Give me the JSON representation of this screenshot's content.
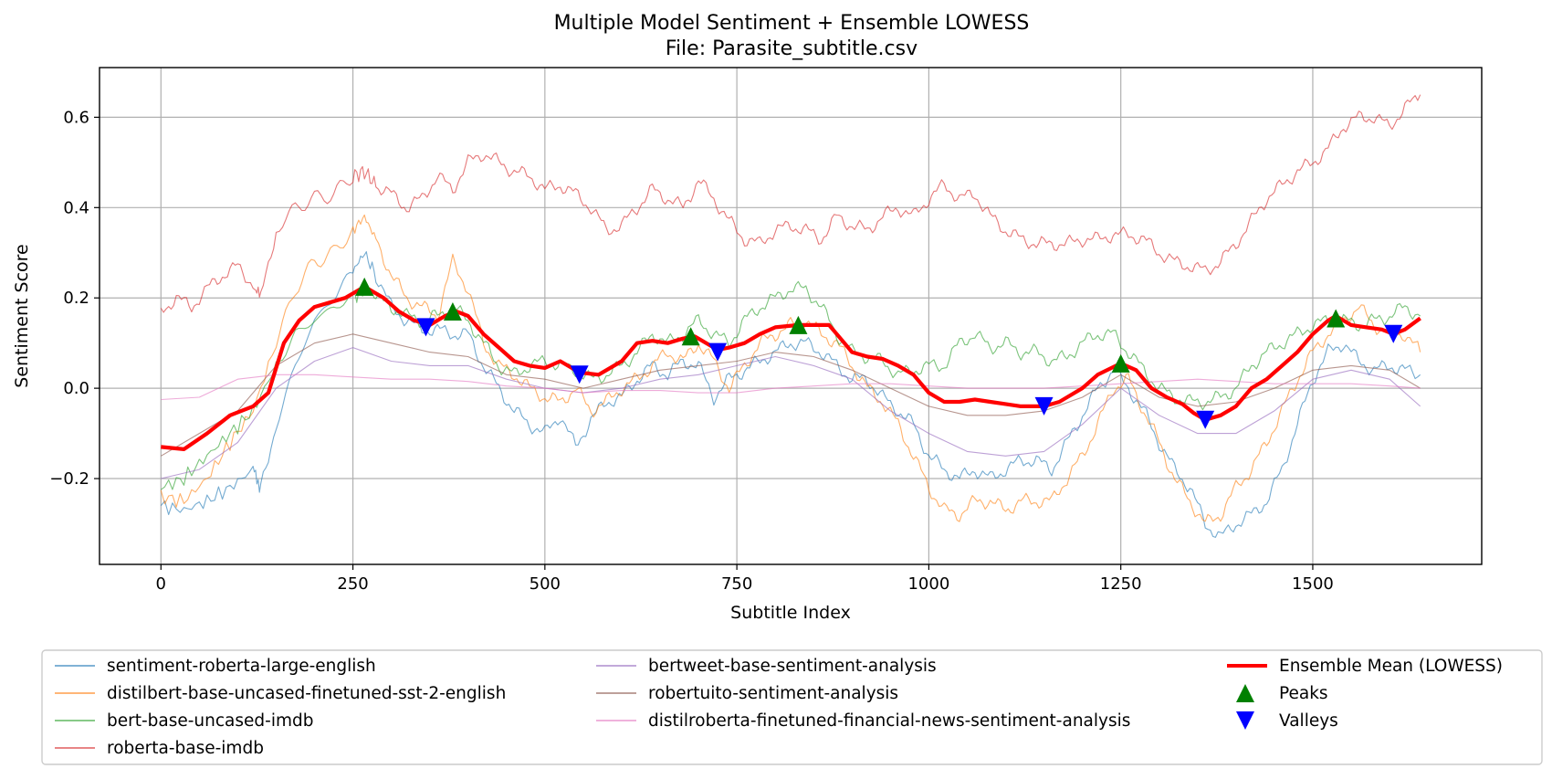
{
  "chart_data": {
    "type": "line",
    "title": "Multiple Model Sentiment + Ensemble LOWESS",
    "subtitle": "File: Parasite_subtitle.csv",
    "xlabel": "Subtitle Index",
    "ylabel": "Sentiment Score",
    "xlim": [
      -80,
      1720
    ],
    "ylim": [
      -0.39,
      0.71
    ],
    "xticks": [
      0,
      250,
      500,
      750,
      1000,
      1250,
      1500
    ],
    "xtick_labels": [
      "0",
      "250",
      "500",
      "750",
      "1000",
      "1250",
      "1500"
    ],
    "yticks": [
      -0.2,
      0.0,
      0.2,
      0.4,
      0.6
    ],
    "ytick_labels": [
      "−0.2",
      "0.0",
      "0.2",
      "0.4",
      "0.6"
    ],
    "grid": true,
    "legend_position": "bottom",
    "series": [
      {
        "name": "sentiment-roberta-large-english",
        "color": "#1f77b4",
        "x": [
          0,
          30,
          60,
          90,
          120,
          130,
          150,
          175,
          200,
          225,
          250,
          265,
          280,
          300,
          320,
          340,
          360,
          380,
          400,
          420,
          440,
          460,
          480,
          500,
          520,
          540,
          560,
          580,
          600,
          620,
          640,
          660,
          680,
          700,
          720,
          740,
          760,
          780,
          800,
          820,
          840,
          860,
          880,
          900,
          920,
          940,
          960,
          980,
          1000,
          1020,
          1040,
          1060,
          1080,
          1100,
          1120,
          1140,
          1160,
          1180,
          1200,
          1220,
          1240,
          1260,
          1280,
          1300,
          1320,
          1340,
          1360,
          1380,
          1400,
          1420,
          1440,
          1460,
          1480,
          1500,
          1520,
          1540,
          1560,
          1580,
          1600,
          1620,
          1640
        ],
        "y": [
          -0.26,
          -0.27,
          -0.25,
          -0.22,
          -0.18,
          -0.22,
          -0.08,
          0.05,
          0.15,
          0.2,
          0.26,
          0.3,
          0.25,
          0.18,
          0.15,
          0.13,
          0.13,
          0.12,
          0.12,
          0.05,
          0.0,
          -0.05,
          -0.08,
          -0.1,
          -0.06,
          -0.13,
          -0.07,
          -0.03,
          -0.02,
          0.02,
          0.05,
          0.03,
          0.06,
          0.05,
          -0.02,
          0.02,
          0.04,
          0.06,
          0.08,
          0.1,
          0.1,
          0.08,
          0.05,
          0.02,
          0.02,
          -0.02,
          -0.05,
          -0.08,
          -0.15,
          -0.18,
          -0.2,
          -0.18,
          -0.2,
          -0.18,
          -0.16,
          -0.16,
          -0.18,
          -0.12,
          -0.06,
          0.0,
          0.04,
          0.0,
          -0.05,
          -0.12,
          -0.18,
          -0.22,
          -0.3,
          -0.33,
          -0.3,
          -0.28,
          -0.25,
          -0.18,
          -0.08,
          0.02,
          0.08,
          0.1,
          0.06,
          0.04,
          0.05,
          0.04,
          0.03
        ]
      },
      {
        "name": "distilbert-base-uncased-finetuned-sst-2-english",
        "color": "#ff7f0e",
        "x": [
          0,
          30,
          60,
          90,
          120,
          150,
          175,
          200,
          225,
          250,
          265,
          280,
          300,
          320,
          340,
          360,
          380,
          400,
          420,
          440,
          460,
          480,
          500,
          520,
          540,
          560,
          580,
          600,
          620,
          640,
          660,
          680,
          700,
          720,
          740,
          760,
          780,
          800,
          820,
          840,
          860,
          880,
          900,
          920,
          940,
          960,
          980,
          1000,
          1020,
          1040,
          1060,
          1080,
          1100,
          1120,
          1140,
          1160,
          1180,
          1200,
          1220,
          1240,
          1260,
          1280,
          1300,
          1320,
          1340,
          1360,
          1380,
          1400,
          1420,
          1440,
          1460,
          1480,
          1500,
          1520,
          1540,
          1560,
          1580,
          1600,
          1620,
          1640
        ],
        "y": [
          -0.24,
          -0.25,
          -0.2,
          -0.12,
          -0.05,
          0.1,
          0.22,
          0.28,
          0.3,
          0.35,
          0.38,
          0.33,
          0.25,
          0.2,
          0.18,
          0.16,
          0.28,
          0.22,
          0.1,
          0.05,
          0.03,
          0.0,
          -0.02,
          -0.03,
          0.0,
          -0.05,
          -0.03,
          0.0,
          0.02,
          0.05,
          0.08,
          0.06,
          0.1,
          0.06,
          0.0,
          0.05,
          0.1,
          0.12,
          0.14,
          0.15,
          0.12,
          0.1,
          0.05,
          0.0,
          -0.03,
          -0.08,
          -0.15,
          -0.22,
          -0.27,
          -0.28,
          -0.25,
          -0.25,
          -0.27,
          -0.25,
          -0.25,
          -0.25,
          -0.2,
          -0.15,
          -0.08,
          0.0,
          0.02,
          -0.05,
          -0.12,
          -0.2,
          -0.25,
          -0.3,
          -0.28,
          -0.22,
          -0.18,
          -0.12,
          -0.05,
          0.02,
          0.08,
          0.12,
          0.15,
          0.18,
          0.14,
          0.12,
          0.12,
          0.08
        ]
      },
      {
        "name": "bert-base-uncased-imdb",
        "color": "#2ca02c",
        "x": [
          0,
          30,
          60,
          90,
          120,
          150,
          175,
          200,
          225,
          250,
          265,
          280,
          300,
          320,
          340,
          360,
          380,
          400,
          420,
          440,
          460,
          480,
          500,
          520,
          540,
          560,
          580,
          600,
          620,
          640,
          660,
          680,
          700,
          720,
          740,
          760,
          780,
          800,
          820,
          840,
          860,
          880,
          900,
          920,
          940,
          960,
          980,
          1000,
          1020,
          1040,
          1060,
          1080,
          1100,
          1120,
          1140,
          1160,
          1180,
          1200,
          1220,
          1240,
          1260,
          1280,
          1300,
          1320,
          1340,
          1360,
          1380,
          1400,
          1420,
          1440,
          1460,
          1480,
          1500,
          1520,
          1540,
          1560,
          1580,
          1600,
          1620,
          1640
        ],
        "y": [
          -0.22,
          -0.2,
          -0.15,
          -0.1,
          -0.05,
          0.05,
          0.12,
          0.15,
          0.18,
          0.2,
          0.22,
          0.2,
          0.18,
          0.16,
          0.15,
          0.16,
          0.18,
          0.15,
          0.1,
          0.05,
          0.03,
          0.05,
          0.06,
          0.05,
          0.04,
          0.02,
          0.03,
          0.05,
          0.08,
          0.12,
          0.1,
          0.12,
          0.15,
          0.12,
          0.1,
          0.15,
          0.18,
          0.2,
          0.22,
          0.22,
          0.18,
          0.12,
          0.08,
          0.07,
          0.06,
          0.03,
          0.04,
          0.05,
          0.05,
          0.1,
          0.12,
          0.09,
          0.1,
          0.08,
          0.08,
          0.06,
          0.07,
          0.1,
          0.12,
          0.12,
          0.08,
          0.04,
          0.0,
          -0.02,
          -0.03,
          -0.03,
          -0.02,
          0.0,
          0.05,
          0.08,
          0.1,
          0.12,
          0.14,
          0.15,
          0.15,
          0.14,
          0.15,
          0.16,
          0.18,
          0.16
        ]
      },
      {
        "name": "roberta-base-imdb",
        "color": "#d62728",
        "x": [
          0,
          20,
          40,
          60,
          80,
          100,
          120,
          130,
          150,
          175,
          200,
          225,
          250,
          265,
          280,
          300,
          320,
          340,
          360,
          380,
          400,
          420,
          440,
          460,
          480,
          500,
          520,
          540,
          560,
          580,
          600,
          620,
          640,
          660,
          680,
          700,
          720,
          740,
          760,
          780,
          800,
          820,
          840,
          860,
          880,
          900,
          920,
          940,
          960,
          980,
          1000,
          1020,
          1040,
          1060,
          1080,
          1100,
          1120,
          1140,
          1160,
          1180,
          1200,
          1220,
          1240,
          1260,
          1280,
          1300,
          1320,
          1340,
          1360,
          1380,
          1400,
          1420,
          1440,
          1460,
          1480,
          1500,
          1520,
          1540,
          1560,
          1580,
          1600,
          1620,
          1640
        ],
        "y": [
          0.17,
          0.2,
          0.18,
          0.22,
          0.25,
          0.27,
          0.23,
          0.2,
          0.35,
          0.4,
          0.42,
          0.43,
          0.47,
          0.48,
          0.45,
          0.43,
          0.4,
          0.42,
          0.47,
          0.44,
          0.5,
          0.52,
          0.5,
          0.48,
          0.47,
          0.44,
          0.45,
          0.43,
          0.4,
          0.35,
          0.36,
          0.4,
          0.44,
          0.42,
          0.4,
          0.46,
          0.42,
          0.37,
          0.33,
          0.32,
          0.35,
          0.36,
          0.35,
          0.33,
          0.38,
          0.36,
          0.35,
          0.38,
          0.4,
          0.38,
          0.42,
          0.45,
          0.42,
          0.43,
          0.38,
          0.35,
          0.33,
          0.32,
          0.32,
          0.32,
          0.33,
          0.33,
          0.34,
          0.34,
          0.33,
          0.3,
          0.28,
          0.27,
          0.26,
          0.28,
          0.32,
          0.37,
          0.42,
          0.45,
          0.48,
          0.5,
          0.53,
          0.58,
          0.6,
          0.6,
          0.58,
          0.62,
          0.65
        ]
      },
      {
        "name": "bertweet-base-sentiment-analysis",
        "color": "#9467bd",
        "x": [
          0,
          50,
          100,
          150,
          200,
          250,
          300,
          350,
          400,
          450,
          500,
          550,
          600,
          650,
          700,
          750,
          800,
          850,
          900,
          950,
          1000,
          1050,
          1100,
          1150,
          1200,
          1250,
          1300,
          1350,
          1400,
          1450,
          1500,
          1550,
          1600,
          1640
        ],
        "y": [
          -0.2,
          -0.18,
          -0.12,
          0.0,
          0.06,
          0.09,
          0.06,
          0.05,
          0.05,
          0.02,
          0.0,
          -0.01,
          0.0,
          0.02,
          0.03,
          0.05,
          0.07,
          0.05,
          0.02,
          -0.05,
          -0.1,
          -0.14,
          -0.15,
          -0.14,
          -0.08,
          0.0,
          -0.06,
          -0.1,
          -0.1,
          -0.05,
          0.02,
          0.04,
          0.02,
          -0.04
        ]
      },
      {
        "name": "robertuito-sentiment-analysis",
        "color": "#8c564b",
        "x": [
          0,
          50,
          100,
          150,
          200,
          250,
          300,
          350,
          400,
          450,
          500,
          550,
          600,
          650,
          700,
          750,
          800,
          850,
          900,
          950,
          1000,
          1050,
          1100,
          1150,
          1200,
          1250,
          1300,
          1350,
          1400,
          1450,
          1500,
          1550,
          1600,
          1640
        ],
        "y": [
          -0.15,
          -0.1,
          -0.05,
          0.05,
          0.1,
          0.12,
          0.1,
          0.08,
          0.07,
          0.03,
          0.02,
          0.0,
          0.02,
          0.04,
          0.05,
          0.06,
          0.08,
          0.07,
          0.04,
          0.0,
          -0.04,
          -0.06,
          -0.06,
          -0.05,
          -0.02,
          0.03,
          -0.02,
          -0.04,
          -0.03,
          0.0,
          0.04,
          0.05,
          0.04,
          0.0
        ]
      },
      {
        "name": "distilroberta-finetuned-financial-news-sentiment-analysis",
        "color": "#e377c2",
        "x": [
          0,
          50,
          100,
          150,
          200,
          250,
          300,
          350,
          400,
          450,
          500,
          550,
          600,
          650,
          700,
          750,
          800,
          850,
          900,
          950,
          1000,
          1050,
          1100,
          1150,
          1200,
          1250,
          1300,
          1350,
          1400,
          1450,
          1500,
          1550,
          1600,
          1640
        ],
        "y": [
          -0.025,
          -0.02,
          0.02,
          0.03,
          0.03,
          0.025,
          0.02,
          0.02,
          0.015,
          0.005,
          0.0,
          -0.01,
          -0.005,
          -0.005,
          -0.01,
          -0.01,
          0.0,
          0.005,
          0.01,
          0.01,
          0.005,
          0.0,
          0.0,
          0.0,
          0.005,
          0.01,
          0.015,
          0.02,
          0.015,
          0.01,
          0.01,
          0.01,
          0.005,
          0.0
        ]
      },
      {
        "name": "Ensemble Mean (LOWESS)",
        "color": "#ff0000",
        "x": [
          0,
          30,
          60,
          90,
          120,
          140,
          160,
          180,
          200,
          220,
          240,
          265,
          290,
          310,
          330,
          350,
          370,
          385,
          400,
          420,
          440,
          460,
          480,
          500,
          520,
          545,
          570,
          600,
          620,
          640,
          660,
          680,
          695,
          710,
          725,
          740,
          760,
          780,
          800,
          830,
          850,
          870,
          885,
          900,
          920,
          940,
          960,
          980,
          1000,
          1020,
          1040,
          1060,
          1080,
          1100,
          1120,
          1150,
          1170,
          1200,
          1220,
          1250,
          1270,
          1290,
          1310,
          1330,
          1345,
          1360,
          1380,
          1400,
          1420,
          1440,
          1460,
          1480,
          1500,
          1520,
          1530,
          1550,
          1570,
          1590,
          1605,
          1620,
          1640
        ],
        "y": [
          -0.13,
          -0.135,
          -0.1,
          -0.06,
          -0.04,
          -0.01,
          0.1,
          0.15,
          0.18,
          0.19,
          0.2,
          0.225,
          0.2,
          0.17,
          0.15,
          0.14,
          0.16,
          0.17,
          0.16,
          0.12,
          0.09,
          0.06,
          0.05,
          0.045,
          0.06,
          0.035,
          0.03,
          0.06,
          0.1,
          0.105,
          0.1,
          0.11,
          0.115,
          0.1,
          0.085,
          0.09,
          0.1,
          0.12,
          0.135,
          0.14,
          0.14,
          0.14,
          0.11,
          0.08,
          0.07,
          0.065,
          0.05,
          0.03,
          -0.01,
          -0.03,
          -0.03,
          -0.025,
          -0.03,
          -0.035,
          -0.04,
          -0.04,
          -0.03,
          0.0,
          0.03,
          0.055,
          0.04,
          0.0,
          -0.02,
          -0.035,
          -0.055,
          -0.07,
          -0.06,
          -0.04,
          0.0,
          0.02,
          0.05,
          0.08,
          0.12,
          0.15,
          0.16,
          0.14,
          0.135,
          0.13,
          0.12,
          0.13,
          0.155
        ]
      }
    ],
    "peaks": {
      "name": "Peaks",
      "color": "#008000",
      "x": [
        265,
        380,
        690,
        830,
        1250,
        1530
      ],
      "y": [
        0.225,
        0.17,
        0.115,
        0.14,
        0.055,
        0.155
      ]
    },
    "valleys": {
      "name": "Valleys",
      "color": "#0000ff",
      "x": [
        345,
        545,
        725,
        1150,
        1360,
        1605
      ],
      "y": [
        0.135,
        0.03,
        0.08,
        -0.04,
        -0.07,
        0.12
      ]
    }
  }
}
